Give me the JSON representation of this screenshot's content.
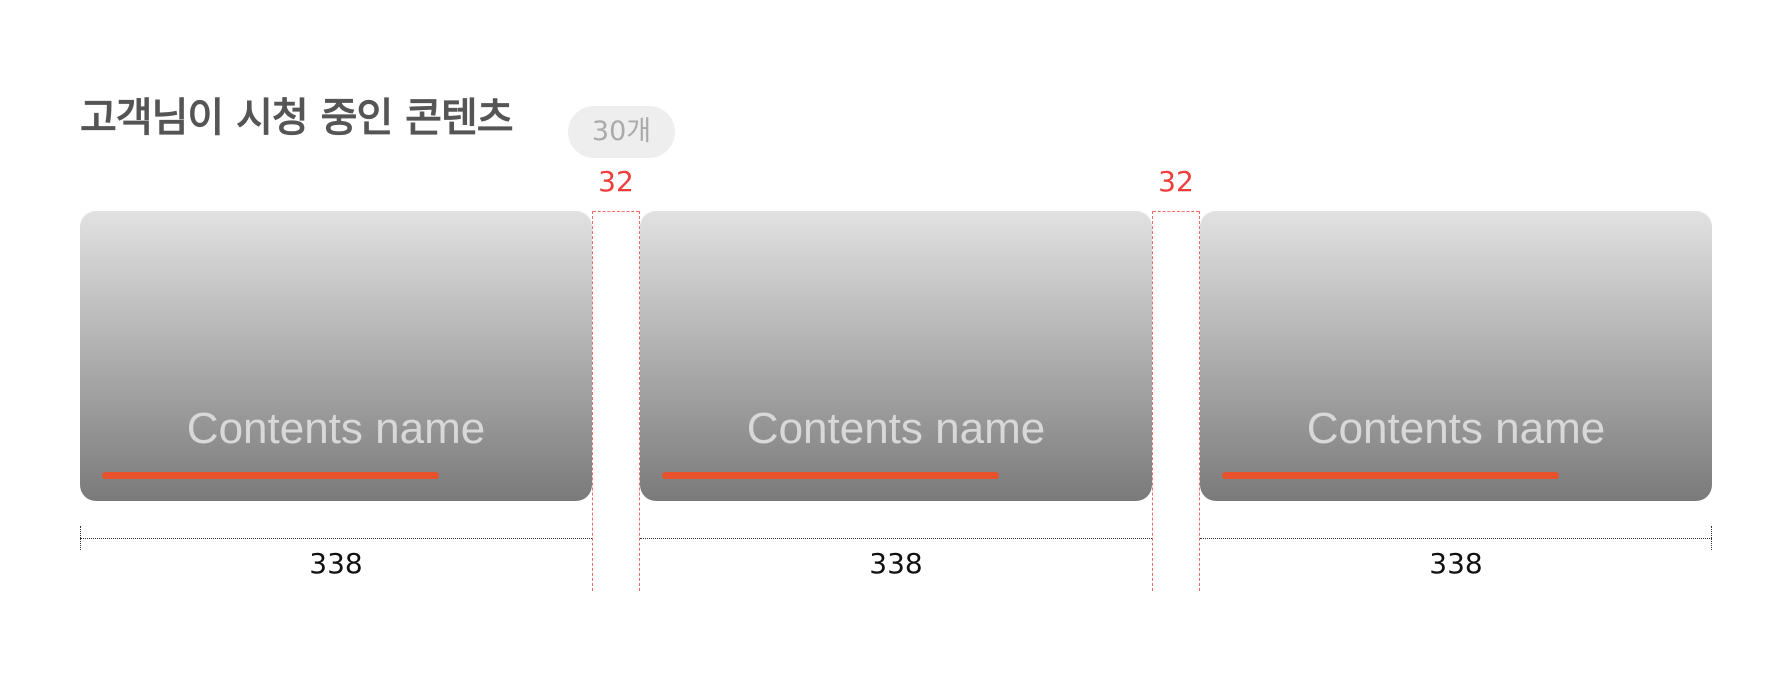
{
  "section": {
    "title": "고객님이 시청 중인 콘텐츠",
    "count_badge": "30개"
  },
  "cards": [
    {
      "title": "Contents name",
      "progress_percent": 72
    },
    {
      "title": "Contents name",
      "progress_percent": 72
    },
    {
      "title": "Contents name",
      "progress_percent": 72
    }
  ],
  "annotations": {
    "gap_labels": [
      "32",
      "32"
    ],
    "width_labels": [
      "338",
      "338",
      "338"
    ]
  },
  "colors": {
    "title": "#555555",
    "badge_bg": "#eeeeee",
    "badge_text": "#aaaaaa",
    "progress": "#e8532d",
    "spacing_guide": "#f03c3c",
    "dimension_text": "#111111"
  }
}
